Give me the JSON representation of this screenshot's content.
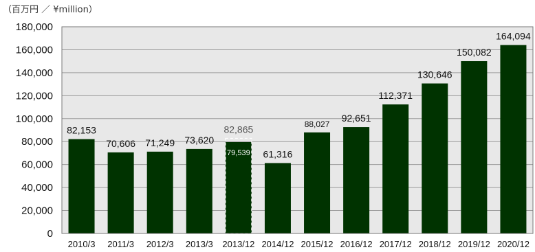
{
  "unit_label": "（百万円 ／ ¥million）",
  "colors": {
    "bar": "#003300",
    "plot_bg": "#e8e8e8",
    "grid": "#9a9a9a",
    "text": "#111111",
    "dim_text": "#555555",
    "inner_label": "#ffffff"
  },
  "chart_data": {
    "type": "bar",
    "categories": [
      "2010/3",
      "2011/3",
      "2012/3",
      "2013/3",
      "2013/12",
      "2014/12",
      "2015/12",
      "2016/12",
      "2017/12",
      "2018/12",
      "2019/12",
      "2020/12"
    ],
    "values": [
      82153,
      70606,
      71249,
      73620,
      79539,
      61316,
      88027,
      92651,
      112371,
      130646,
      150082,
      164094
    ],
    "value_labels": [
      "82,153",
      "70,606",
      "71,249",
      "73,620",
      "79,539",
      "61,316",
      "88,027",
      "92,651",
      "112,371",
      "130,646",
      "150,082",
      "164,094"
    ],
    "annotation": {
      "category": "2013/12",
      "value": 82865,
      "label": "82,865",
      "style": "dashed outline"
    },
    "ylim": [
      0,
      180000
    ],
    "yticks": [
      0,
      20000,
      40000,
      60000,
      80000,
      100000,
      120000,
      140000,
      160000,
      180000
    ],
    "ytick_labels": [
      "0",
      "20,000",
      "40,000",
      "60,000",
      "80,000",
      "100,000",
      "120,000",
      "140,000",
      "160,000",
      "180,000"
    ],
    "grid": true,
    "title": "",
    "xlabel": "",
    "ylabel": ""
  }
}
